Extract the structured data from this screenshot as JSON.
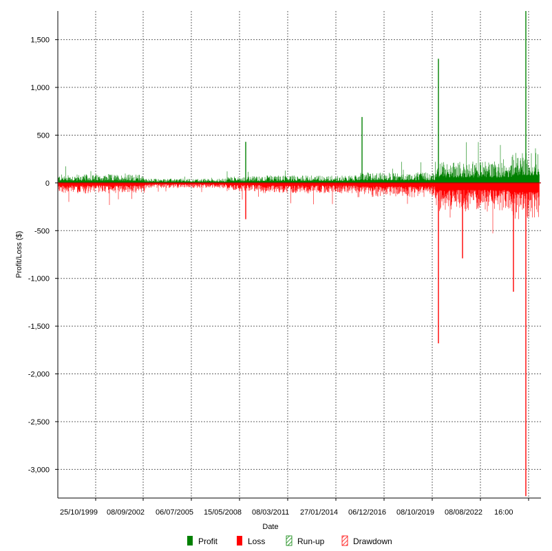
{
  "chart_data": {
    "type": "bar",
    "xlabel": "Date",
    "ylabel": "Profit/Loss ($)",
    "ylim": [
      -3300,
      1800
    ],
    "y_ticks": [
      {
        "value": 1500,
        "label": "1,500"
      },
      {
        "value": 1000,
        "label": "1,000"
      },
      {
        "value": 500,
        "label": "500"
      },
      {
        "value": 0,
        "label": "0"
      },
      {
        "value": -500,
        "label": "-500"
      },
      {
        "value": -1000,
        "label": "-1,000"
      },
      {
        "value": -1500,
        "label": "-1,500"
      },
      {
        "value": -2000,
        "label": "-2,000"
      },
      {
        "value": -2500,
        "label": "-2,500"
      },
      {
        "value": -3000,
        "label": "-3,000"
      }
    ],
    "x_tick_labels": [
      "25/10/1999",
      "08/09/2002",
      "06/07/2005",
      "15/05/2008",
      "08/03/2011",
      "27/01/2014",
      "06/12/2016",
      "08/10/2019",
      "08/08/2022",
      "16:00"
    ],
    "grid": true,
    "legend_position": "bottom-center",
    "series": [
      {
        "name": "Profit",
        "color": "#008000",
        "style": "solid"
      },
      {
        "name": "Loss",
        "color": "#ff0000",
        "style": "solid"
      },
      {
        "name": "Run-up",
        "color": "#008000",
        "style": "hatched"
      },
      {
        "name": "Drawdown",
        "color": "#ff0000",
        "style": "hatched"
      }
    ],
    "notable_values": [
      {
        "x": "2019",
        "series": "Loss",
        "value": -1680
      },
      {
        "x": "2019",
        "series": "Run-up",
        "value": 1300
      },
      {
        "x": "2023",
        "series": "Run-up",
        "value": 1800
      },
      {
        "x": "2023",
        "series": "Drawdown",
        "value": -3280
      },
      {
        "x": "2008",
        "series": "Run-up",
        "value": 430
      },
      {
        "x": "2008",
        "series": "Loss",
        "value": -380
      },
      {
        "x": "2015",
        "series": "Run-up",
        "value": 690
      },
      {
        "x": "2021",
        "series": "Loss",
        "value": -790
      },
      {
        "x": "2023",
        "series": "Loss",
        "value": -1140
      }
    ]
  }
}
